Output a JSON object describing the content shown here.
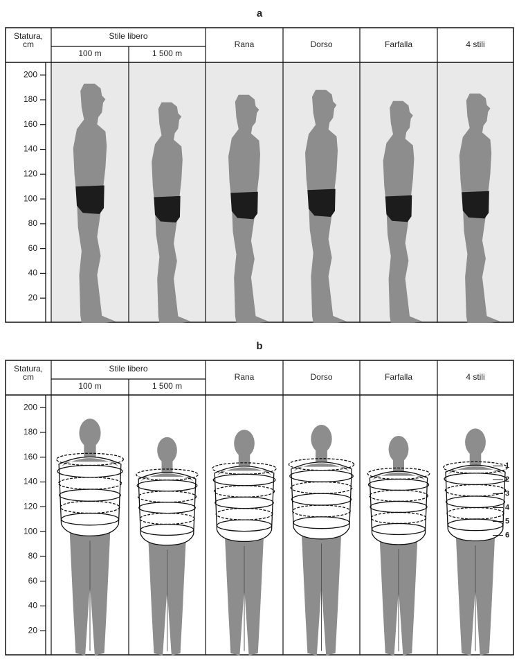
{
  "panels": [
    {
      "label": "a",
      "axis_title": [
        "Statura,",
        "cm"
      ],
      "group": {
        "title": "Stile libero",
        "columns": [
          "100 m",
          "1 500 m"
        ]
      },
      "columns": [
        "Rana",
        "Dorso",
        "Farfalla",
        "4 stili"
      ],
      "yticks": [
        200,
        180,
        160,
        140,
        120,
        100,
        80,
        60,
        40,
        20
      ],
      "stature": [
        193,
        178,
        184,
        188,
        179,
        185
      ]
    },
    {
      "label": "b",
      "axis_title": [
        "Statura,",
        "cm"
      ],
      "group": {
        "title": "Stile libero",
        "columns": [
          "100 m",
          "1 500 m"
        ]
      },
      "columns": [
        "Rana",
        "Dorso",
        "Farfalla",
        "4 stili"
      ],
      "yticks": [
        200,
        180,
        160,
        140,
        120,
        100,
        80,
        60,
        40,
        20
      ],
      "stature": [
        193,
        178,
        184,
        188,
        179,
        185
      ],
      "markers": [
        "1",
        "2",
        "3",
        "4",
        "5",
        "6"
      ]
    }
  ]
}
